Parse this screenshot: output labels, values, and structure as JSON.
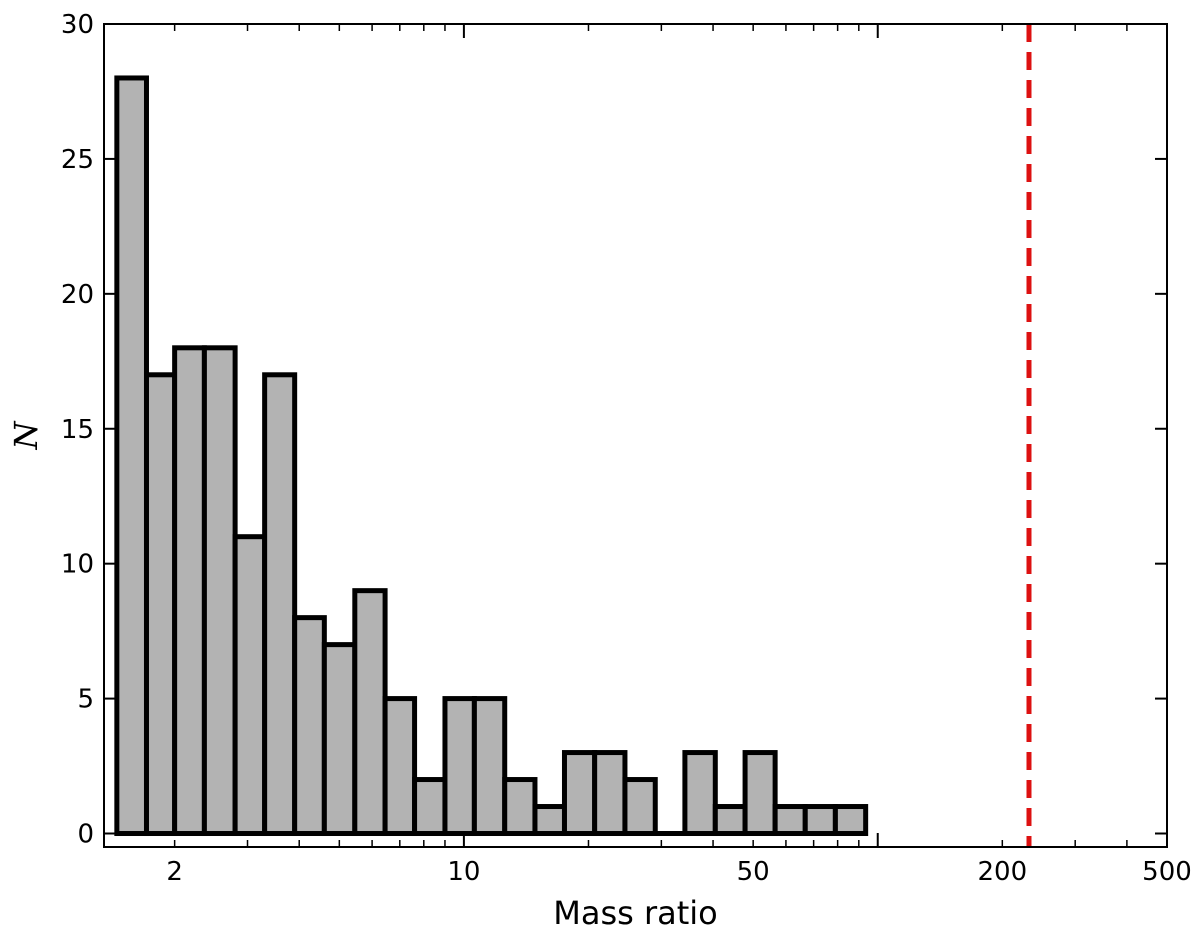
{
  "chart_data": {
    "type": "bar",
    "title": "",
    "xlabel": "Mass ratio",
    "ylabel": "N",
    "xscale": "log",
    "xlim": [
      1.35,
      500
    ],
    "ylim": [
      -0.5,
      30
    ],
    "grid": false,
    "bar_color": "#b3b3b3",
    "edge_color": "#000000",
    "bins": [
      {
        "x0": 1.45,
        "x1": 1.71,
        "count": 28
      },
      {
        "x0": 1.71,
        "x1": 2.0,
        "count": 17
      },
      {
        "x0": 2.0,
        "x1": 2.36,
        "count": 18
      },
      {
        "x0": 2.36,
        "x1": 2.8,
        "count": 18
      },
      {
        "x0": 2.8,
        "x1": 3.3,
        "count": 11
      },
      {
        "x0": 3.3,
        "x1": 3.9,
        "count": 17
      },
      {
        "x0": 3.9,
        "x1": 4.6,
        "count": 8
      },
      {
        "x0": 4.6,
        "x1": 5.45,
        "count": 7
      },
      {
        "x0": 5.45,
        "x1": 6.45,
        "count": 9
      },
      {
        "x0": 6.45,
        "x1": 7.6,
        "count": 5
      },
      {
        "x0": 7.6,
        "x1": 9.0,
        "count": 2
      },
      {
        "x0": 9.0,
        "x1": 10.6,
        "count": 5
      },
      {
        "x0": 10.6,
        "x1": 12.55,
        "count": 5
      },
      {
        "x0": 12.55,
        "x1": 14.85,
        "count": 2
      },
      {
        "x0": 14.85,
        "x1": 17.5,
        "count": 1
      },
      {
        "x0": 17.5,
        "x1": 20.7,
        "count": 3
      },
      {
        "x0": 20.7,
        "x1": 24.5,
        "count": 3
      },
      {
        "x0": 24.5,
        "x1": 29.0,
        "count": 2
      },
      {
        "x0": 29.0,
        "x1": 34.2,
        "count": 0
      },
      {
        "x0": 34.2,
        "x1": 40.5,
        "count": 3
      },
      {
        "x0": 40.5,
        "x1": 47.8,
        "count": 1
      },
      {
        "x0": 47.8,
        "x1": 56.5,
        "count": 3
      },
      {
        "x0": 56.5,
        "x1": 66.8,
        "count": 1
      },
      {
        "x0": 66.8,
        "x1": 79.0,
        "count": 1
      },
      {
        "x0": 79.0,
        "x1": 93.5,
        "count": 1
      }
    ],
    "x_ticks": [
      {
        "value": 2,
        "label": "2"
      },
      {
        "value": 10,
        "label": "10"
      },
      {
        "value": 50,
        "label": "50"
      },
      {
        "value": 200,
        "label": "200"
      },
      {
        "value": 500,
        "label": "500"
      }
    ],
    "y_ticks": [
      {
        "value": 0,
        "label": "0"
      },
      {
        "value": 5,
        "label": "5"
      },
      {
        "value": 10,
        "label": "10"
      },
      {
        "value": 15,
        "label": "15"
      },
      {
        "value": 20,
        "label": "20"
      },
      {
        "value": 25,
        "label": "25"
      },
      {
        "value": 30,
        "label": "30"
      }
    ],
    "reference_line": {
      "x": 232,
      "color": "#dd1111",
      "style": "dashed"
    }
  }
}
